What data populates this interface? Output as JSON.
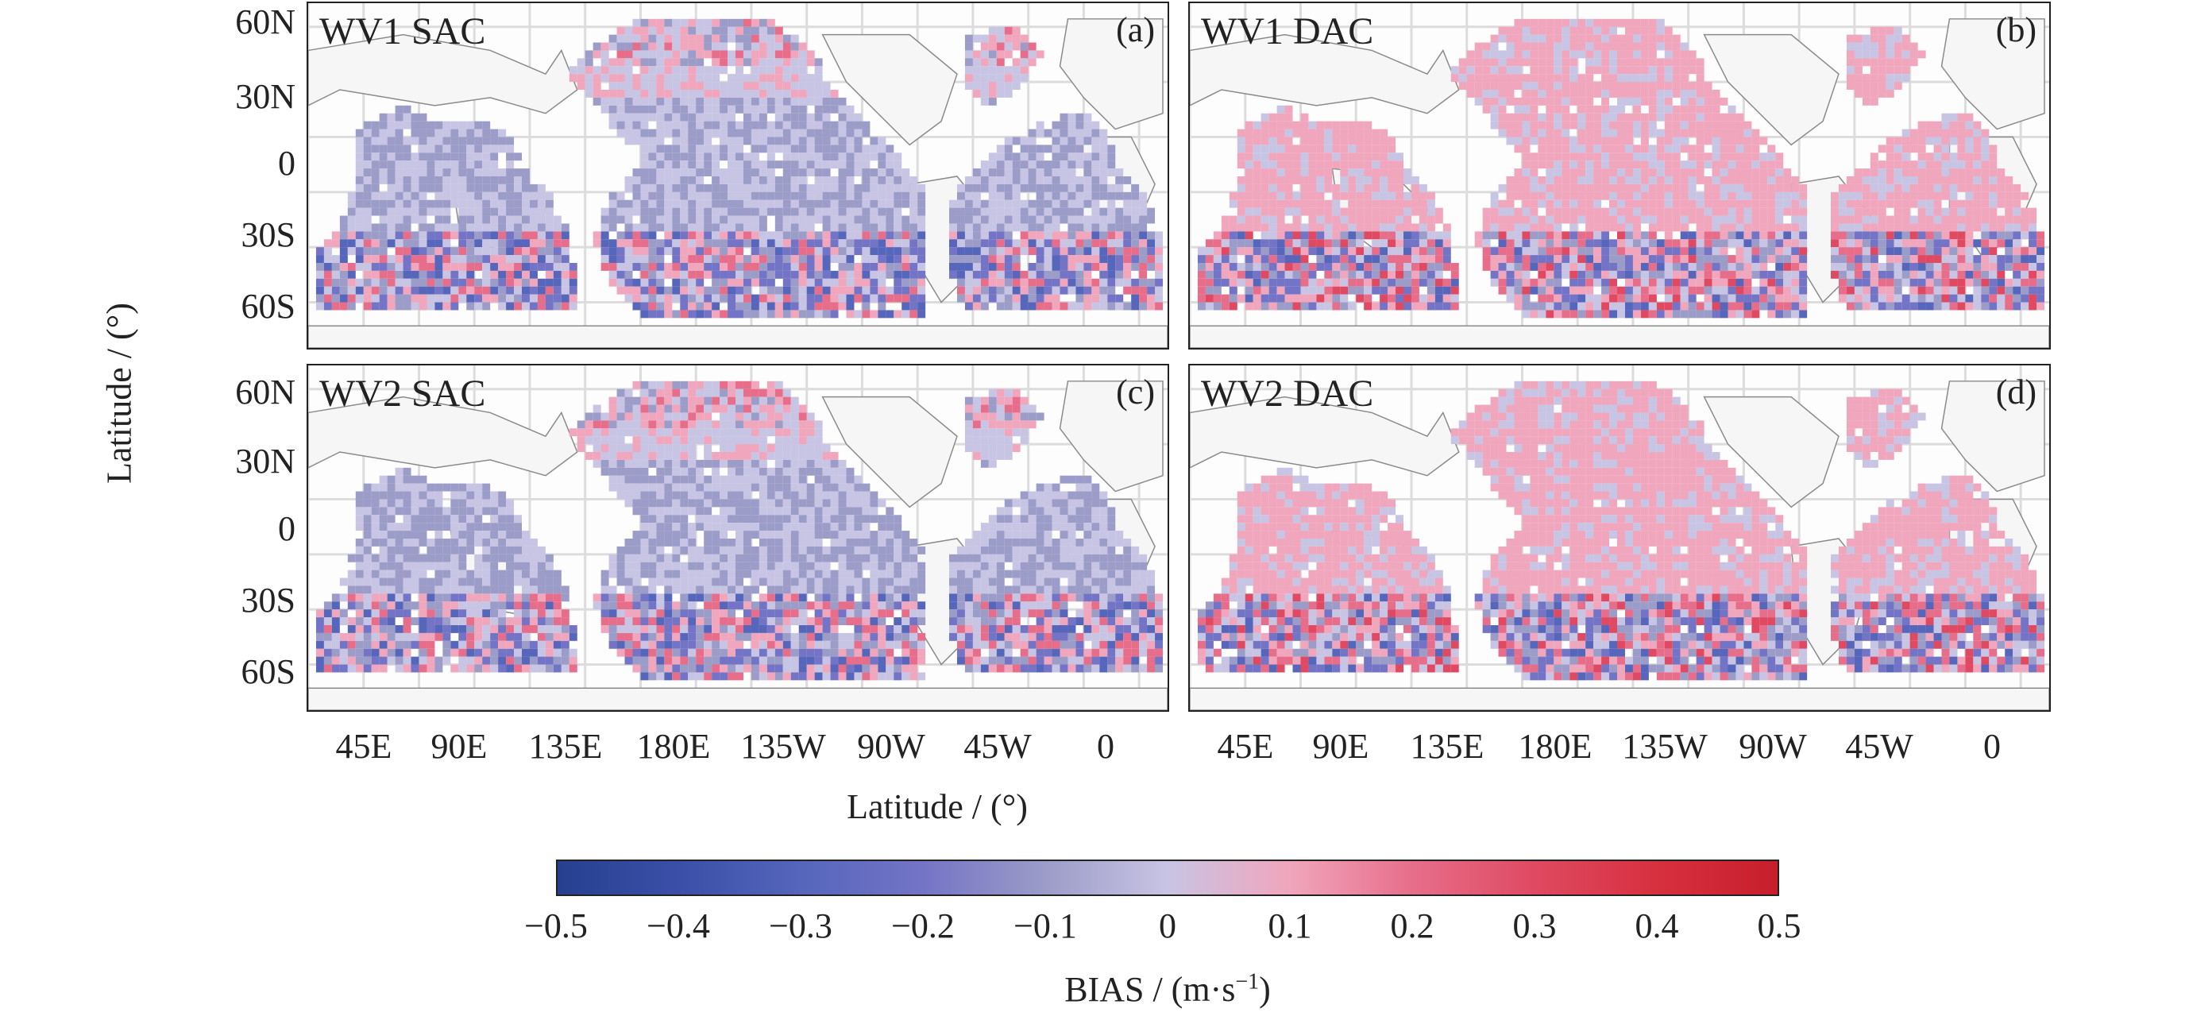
{
  "panels": [
    {
      "title": "WV1 SAC",
      "letter": "(a)",
      "style": "sac",
      "seed": 11
    },
    {
      "title": "WV1 DAC",
      "letter": "(b)",
      "style": "dac",
      "seed": 23
    },
    {
      "title": "WV2 SAC",
      "letter": "(c)",
      "style": "sac",
      "seed": 37
    },
    {
      "title": "WV2 DAC",
      "letter": "(d)",
      "style": "dac",
      "seed": 53
    }
  ],
  "y_ticks": [
    "60N",
    "30N",
    "0",
    "30S",
    "60S"
  ],
  "x_ticks": [
    "45E",
    "90E",
    "135E",
    "180E",
    "135W",
    "90W",
    "45W",
    "0"
  ],
  "y_axis_title": "Latitude / (°)",
  "x_axis_title": "Latitude / (°)",
  "colorbar": {
    "ticks": [
      "−0.5",
      "−0.4",
      "−0.3",
      "−0.2",
      "−0.1",
      "0",
      "0.1",
      "0.2",
      "0.3",
      "0.4",
      "0.5"
    ],
    "min": -0.5,
    "max": 0.5,
    "label_main": "BIAS / (m·s",
    "label_sup": "−1",
    "label_end": ")",
    "colors": [
      "#26408f",
      "#3b4fa8",
      "#5566bb",
      "#7474c6",
      "#9c9cc8",
      "#c8c4e4",
      "#f0a6bc",
      "#e76e8b",
      "#df4a62",
      "#d7303f",
      "#c81e2c"
    ]
  },
  "colors": {
    "land_fill": "#f6f6f6",
    "coast": "#8a8a8a",
    "grid": "#dcdcdc",
    "frame": "#222222"
  }
}
